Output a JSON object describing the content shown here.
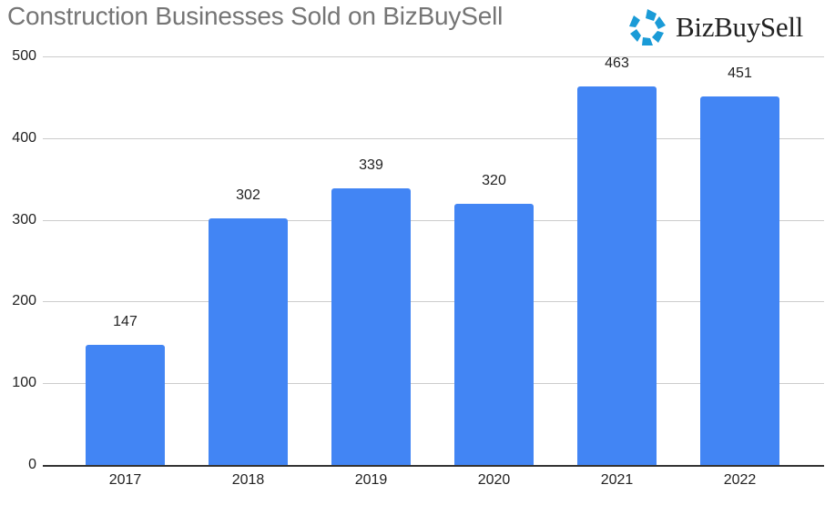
{
  "header": {
    "title": "Construction Businesses Sold on BizBuySell",
    "logo_text": "BizBuySell"
  },
  "colors": {
    "bar": "#4285f4",
    "logo_accent": "#1a9bd7",
    "title": "#757575",
    "gridline": "#cccccc"
  },
  "chart_data": {
    "type": "bar",
    "title": "Construction Businesses Sold on BizBuySell",
    "categories": [
      "2017",
      "2018",
      "2019",
      "2020",
      "2021",
      "2022"
    ],
    "values": [
      147,
      302,
      339,
      320,
      463,
      451
    ],
    "data_labels": [
      "147",
      "302",
      "339",
      "320",
      "463",
      "451"
    ],
    "xlabel": "",
    "ylabel": "",
    "ylim": [
      0,
      500
    ],
    "yticks": [
      "0",
      "100",
      "200",
      "300",
      "400",
      "500"
    ],
    "grid": true,
    "legend": "none"
  }
}
